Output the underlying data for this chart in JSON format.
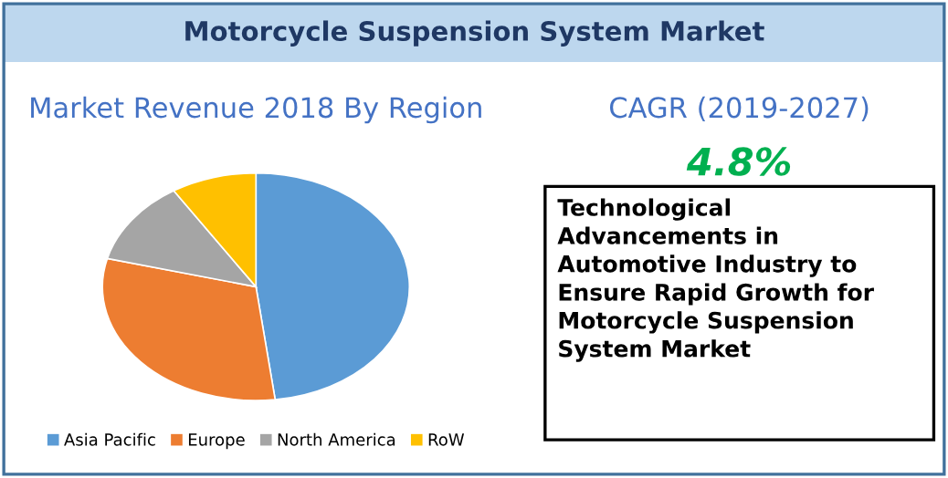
{
  "chart_data": [
    {
      "type": "pie",
      "title": "Motorcycle Suspension System Market",
      "subtitle": "Market Revenue 2018 By Region",
      "categories": [
        "Asia Pacific",
        "Europe",
        "North America",
        "RoW"
      ],
      "values": [
        48,
        31,
        12,
        9
      ],
      "colors": [
        "#5b9bd5",
        "#ed7d31",
        "#a5a5a5",
        "#ffc000"
      ],
      "legend": "bottom"
    },
    {
      "type": "other",
      "title": "CAGR (2019-2027)",
      "annotations": [
        "4.8%",
        "Technological Advancements in Automotive Industry to Ensure Rapid Growth for Motorcycle Suspension System Market"
      ]
    }
  ]
}
